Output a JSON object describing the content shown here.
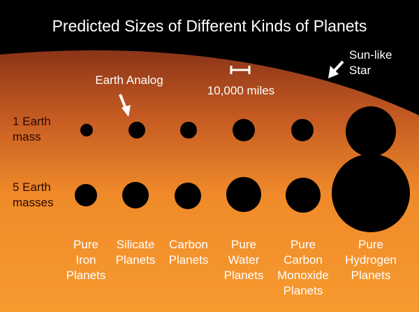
{
  "title": "Predicted Sizes of Different Kinds of Planets",
  "annotations": {
    "earth_analog": "Earth Analog",
    "scale_bar": "10,000 miles",
    "sun_like_star": "Sun-like\nStar"
  },
  "rows": [
    {
      "label": "1 Earth\nmass"
    },
    {
      "label": "5 Earth\nmasses"
    }
  ],
  "columns": [
    {
      "label": "Pure\nIron\nPlanets"
    },
    {
      "label": "Silicate\nPlanets"
    },
    {
      "label": "Carbon\nPlanets"
    },
    {
      "label": "Pure\nWater\nPlanets"
    },
    {
      "label": "Pure\nCarbon\nMonoxide\nPlanets"
    },
    {
      "label": "Pure\nHydrogen\nPlanets"
    }
  ],
  "colors": {
    "background": "#000000",
    "star_top": "#a0401a",
    "star_bottom": "#f6922a",
    "planet": "#000000",
    "text": "#ffffff"
  }
}
